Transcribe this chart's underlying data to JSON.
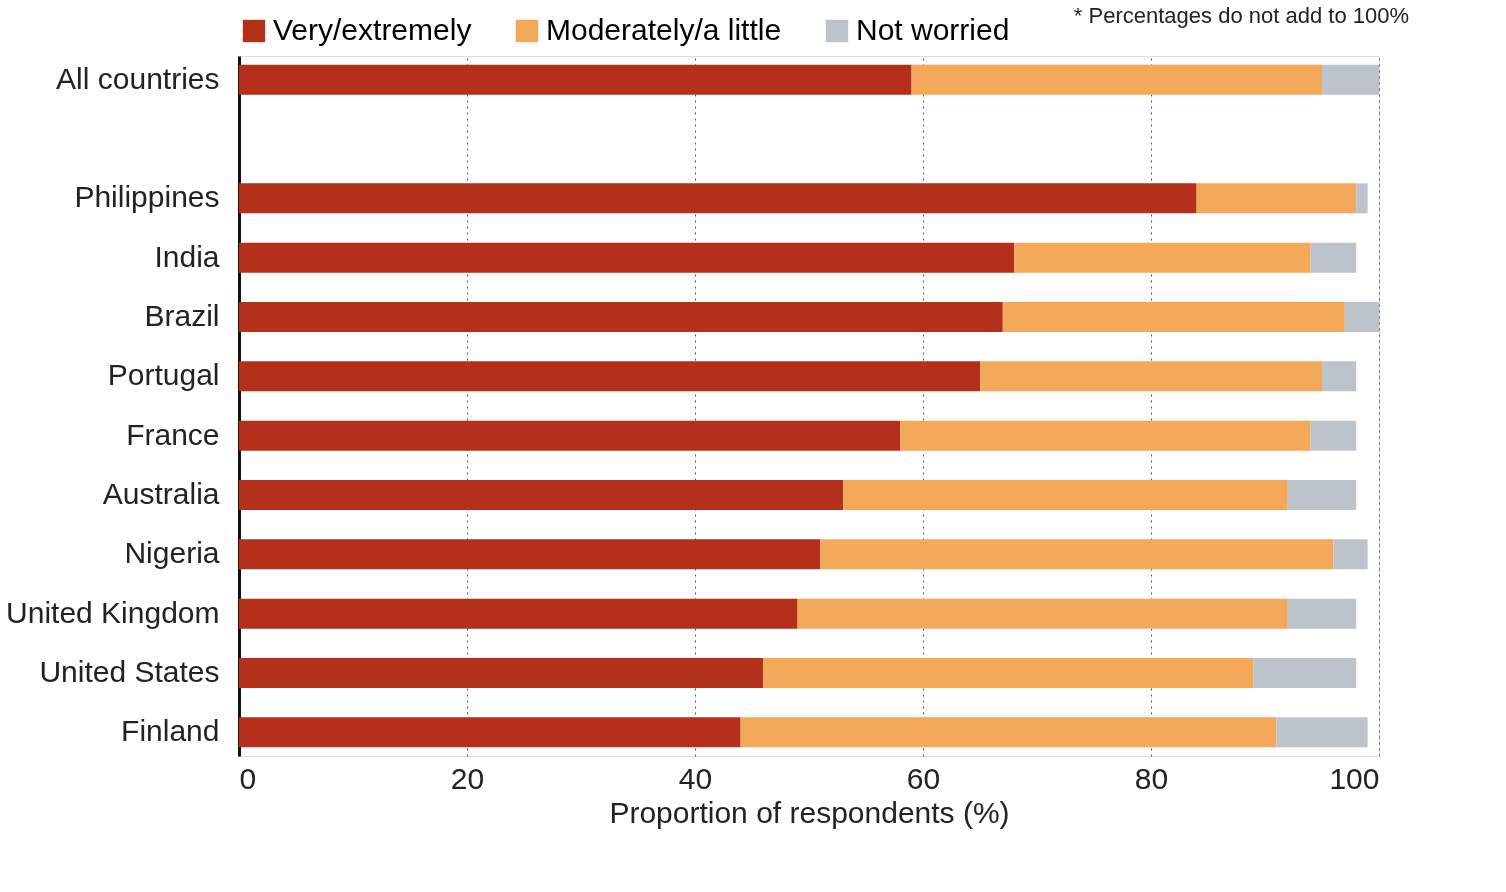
{
  "chart_data": {
    "type": "bar",
    "orientation": "horizontal",
    "stacked": true,
    "xlabel": "Proportion of respondents (%)",
    "categories": [
      "All countries",
      null,
      "Philippines",
      "India",
      "Brazil",
      "Portugal",
      "France",
      "Australia",
      "Nigeria",
      "United Kingdom",
      "United States",
      "Finland"
    ],
    "series": [
      {
        "name": "Very/extremely",
        "color": "#b5301a",
        "values": [
          59,
          null,
          84,
          68,
          67,
          65,
          58,
          53,
          51,
          49,
          46,
          44
        ]
      },
      {
        "name": "Moderately/a little",
        "color": "#f4a95a",
        "values": [
          36,
          null,
          14,
          26,
          30,
          30,
          36,
          39,
          45,
          43,
          43,
          47
        ]
      },
      {
        "name": "Not worried",
        "color": "#bcc3ca",
        "values": [
          5,
          null,
          1,
          4,
          3,
          3,
          4,
          6,
          3,
          6,
          9,
          8
        ]
      }
    ],
    "xlim": [
      0,
      100
    ],
    "xticks": [
      0,
      20,
      40,
      60,
      80,
      100
    ],
    "grid": "x",
    "legend": "top",
    "annotations": [
      "* Percentages do not add to 100%"
    ]
  }
}
